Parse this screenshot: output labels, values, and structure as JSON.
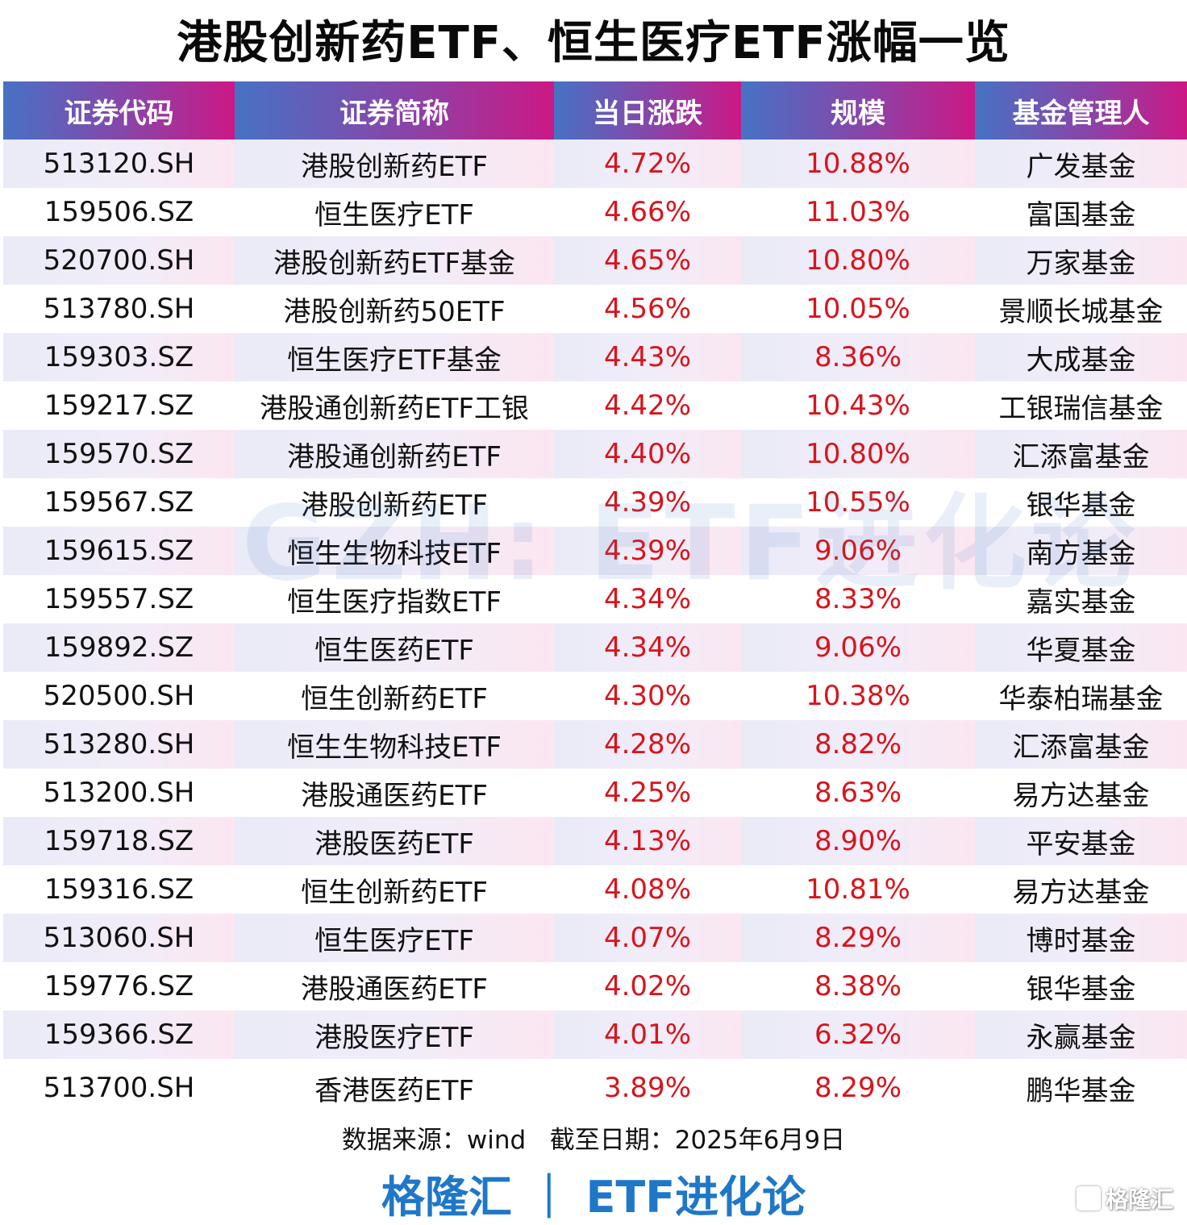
{
  "title": "港股创新药ETF、恒生医疗ETF涨幅一览",
  "table": {
    "headers": [
      "证券代码",
      "证券简称",
      "当日涨跌",
      "规模",
      "基金管理人"
    ],
    "rows": [
      {
        "code": "513120.SH",
        "name": "港股创新药ETF",
        "change": "4.72%",
        "scale": "10.88%",
        "manager": "广发基金"
      },
      {
        "code": "159506.SZ",
        "name": "恒生医疗ETF",
        "change": "4.66%",
        "scale": "11.03%",
        "manager": "富国基金"
      },
      {
        "code": "520700.SH",
        "name": "港股创新药ETF基金",
        "change": "4.65%",
        "scale": "10.80%",
        "manager": "万家基金"
      },
      {
        "code": "513780.SH",
        "name": "港股创新药50ETF",
        "change": "4.56%",
        "scale": "10.05%",
        "manager": "景顺长城基金"
      },
      {
        "code": "159303.SZ",
        "name": "恒生医疗ETF基金",
        "change": "4.43%",
        "scale": "8.36%",
        "manager": "大成基金"
      },
      {
        "code": "159217.SZ",
        "name": "港股通创新药ETF工银",
        "change": "4.42%",
        "scale": "10.43%",
        "manager": "工银瑞信基金"
      },
      {
        "code": "159570.SZ",
        "name": "港股通创新药ETF",
        "change": "4.40%",
        "scale": "10.80%",
        "manager": "汇添富基金"
      },
      {
        "code": "159567.SZ",
        "name": "港股创新药ETF",
        "change": "4.39%",
        "scale": "10.55%",
        "manager": "银华基金"
      },
      {
        "code": "159615.SZ",
        "name": "恒生生物科技ETF",
        "change": "4.39%",
        "scale": "9.06%",
        "manager": "南方基金"
      },
      {
        "code": "159557.SZ",
        "name": "恒生医疗指数ETF",
        "change": "4.34%",
        "scale": "8.33%",
        "manager": "嘉实基金"
      },
      {
        "code": "159892.SZ",
        "name": "恒生医药ETF",
        "change": "4.34%",
        "scale": "9.06%",
        "manager": "华夏基金"
      },
      {
        "code": "520500.SH",
        "name": "恒生创新药ETF",
        "change": "4.30%",
        "scale": "10.38%",
        "manager": "华泰柏瑞基金"
      },
      {
        "code": "513280.SH",
        "name": "恒生生物科技ETF",
        "change": "4.28%",
        "scale": "8.82%",
        "manager": "汇添富基金"
      },
      {
        "code": "513200.SH",
        "name": "港股通医药ETF",
        "change": "4.25%",
        "scale": "8.63%",
        "manager": "易方达基金"
      },
      {
        "code": "159718.SZ",
        "name": "港股医药ETF",
        "change": "4.13%",
        "scale": "8.90%",
        "manager": "平安基金"
      },
      {
        "code": "159316.SZ",
        "name": "恒生创新药ETF",
        "change": "4.08%",
        "scale": "10.81%",
        "manager": "易方达基金"
      },
      {
        "code": "513060.SH",
        "name": "恒生医疗ETF",
        "change": "4.07%",
        "scale": "8.29%",
        "manager": "博时基金"
      },
      {
        "code": "159776.SZ",
        "name": "港股通医药ETF",
        "change": "4.02%",
        "scale": "8.38%",
        "manager": "银华基金"
      },
      {
        "code": "159366.SZ",
        "name": "港股医疗ETF",
        "change": "4.01%",
        "scale": "6.32%",
        "manager": "永赢基金"
      },
      {
        "code": "513700.SH",
        "name": "香港医药ETF",
        "change": "3.89%",
        "scale": "8.29%",
        "manager": "鹏华基金"
      }
    ]
  },
  "watermark": "GZH: ETF进化论",
  "footer": {
    "source": "数据来源：wind   截至日期：2025年6月9日",
    "brand": "格隆汇 ｜ ETF进化论",
    "logo_text": "格隆汇"
  },
  "colors": {
    "header_gradient": [
      "#4672c4",
      "#8b43a8",
      "#cc1885"
    ],
    "positive_red": "#d8141c",
    "brand_blue": "#1f77c8"
  }
}
